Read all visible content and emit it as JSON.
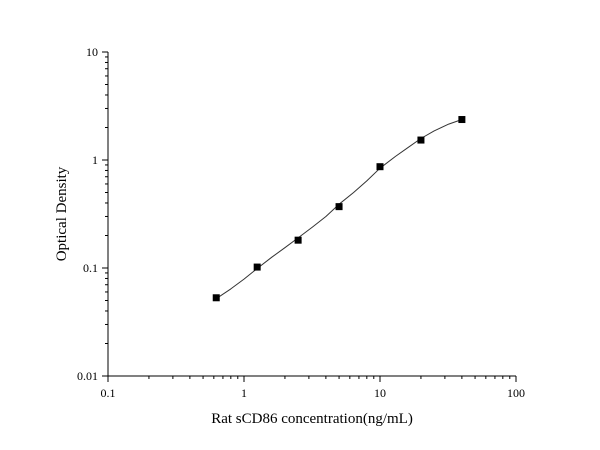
{
  "chart_data": {
    "type": "scatter",
    "title": "",
    "xlabel": "Rat sCD86 concentration(ng/mL)",
    "ylabel": "Optical Density",
    "x_scale": "log",
    "y_scale": "log",
    "xlim": [
      0.1,
      100
    ],
    "ylim": [
      0.01,
      10
    ],
    "x_ticks": [
      0.1,
      1,
      10,
      100
    ],
    "x_tick_labels": [
      "0.1",
      "1",
      "10",
      "100"
    ],
    "y_ticks": [
      0.01,
      0.1,
      1,
      10
    ],
    "y_tick_labels": [
      "0.01",
      "0.1",
      "1",
      "10"
    ],
    "grid": false,
    "legend": "none",
    "series": [
      {
        "marker": "square",
        "x": [
          0.625,
          1.25,
          2.5,
          5,
          10,
          20,
          40
        ],
        "y": [
          0.053,
          0.102,
          0.181,
          0.37,
          0.867,
          1.53,
          2.37
        ]
      }
    ],
    "fit_curve": {
      "type": "line",
      "x": [
        0.625,
        0.8,
        1.0,
        1.25,
        1.6,
        2.0,
        2.5,
        3.2,
        4.0,
        5.0,
        6.4,
        8.0,
        10,
        13,
        16,
        20,
        25,
        32,
        40
      ],
      "y": [
        0.052,
        0.064,
        0.079,
        0.099,
        0.126,
        0.154,
        0.19,
        0.24,
        0.3,
        0.39,
        0.5,
        0.64,
        0.84,
        1.08,
        1.3,
        1.58,
        1.86,
        2.15,
        2.37
      ]
    },
    "colors": {
      "marker": "#000000",
      "curve": "#333333",
      "axis": "#000000"
    }
  }
}
